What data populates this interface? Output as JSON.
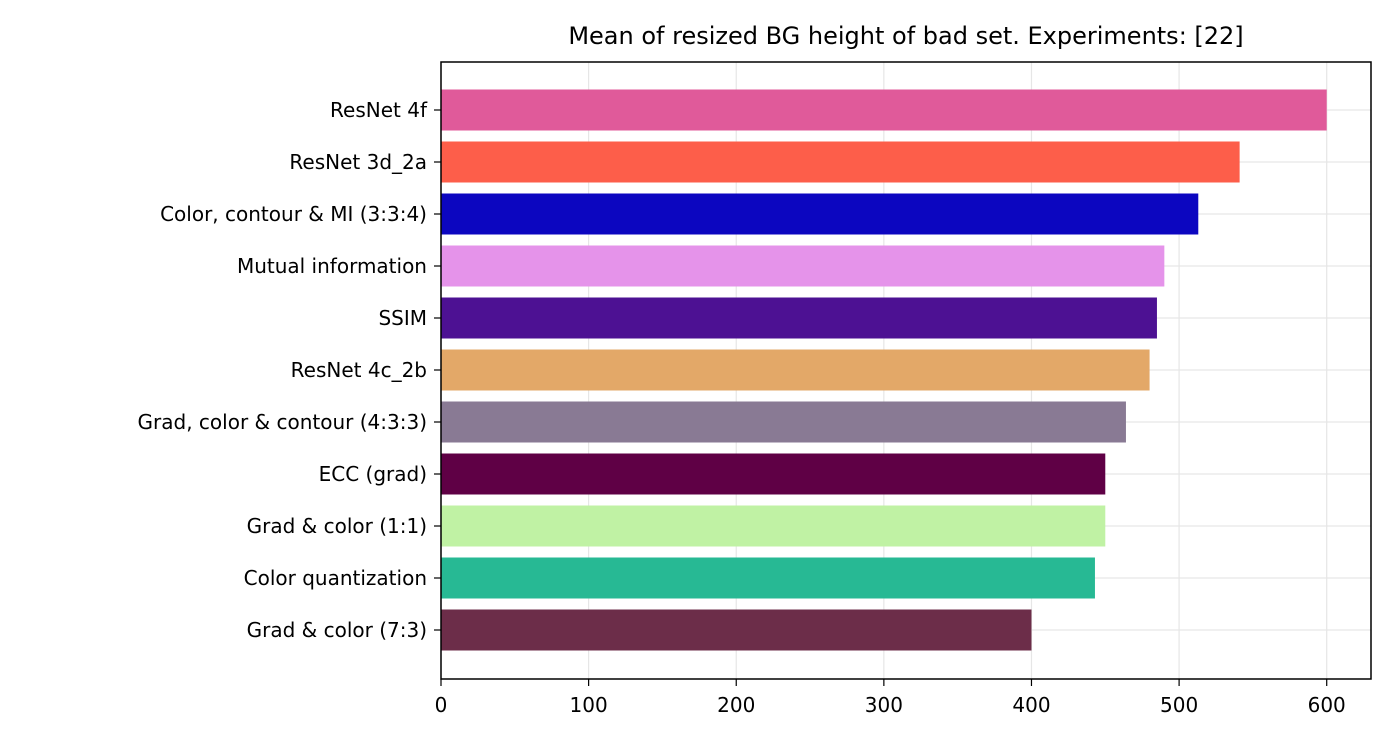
{
  "chart_data": {
    "type": "bar",
    "orientation": "horizontal",
    "title": "Mean of resized BG height of bad set. Experiments: [22]",
    "xlabel": "",
    "ylabel": "",
    "xlim": [
      0,
      630
    ],
    "xticks": [
      0,
      100,
      200,
      300,
      400,
      500,
      600
    ],
    "grid": true,
    "categories": [
      "ResNet 4f",
      "ResNet 3d_2a",
      "Color, contour & MI (3:3:4)",
      "Mutual information",
      "SSIM",
      "ResNet 4c_2b",
      "Grad, color & contour (4:3:3)",
      "ECC (grad)",
      "Grad & color (1:1)",
      "Color quantization",
      "Grad & color (7:3)"
    ],
    "values": [
      600,
      541,
      513,
      490,
      485,
      480,
      464,
      450,
      450,
      443,
      400
    ],
    "colors": [
      "#e05a9a",
      "#fd5e4a",
      "#0c06c0",
      "#e593ea",
      "#4d1193",
      "#e3a868",
      "#897a94",
      "#5f0045",
      "#c0f2a4",
      "#27b994",
      "#6c2d49"
    ]
  }
}
